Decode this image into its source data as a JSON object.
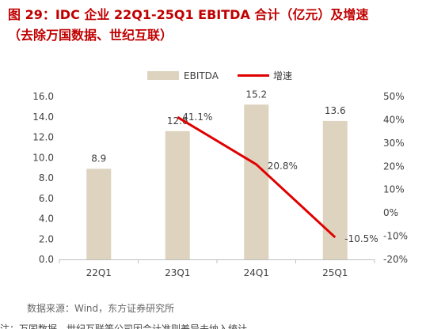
{
  "title_line1": "图 29：IDC 企业 22Q1-25Q1 EBITDA 合计（亿元）及增速",
  "title_line2": "（去除万国数据、世纪互联）",
  "source": "数据来源：Wind，东方证券研究所",
  "cut_text": "注：万国数据、世纪互联等公司因会计准则差异未纳入统计",
  "colors": {
    "title": "#c00000",
    "bar": "#ddd3bf",
    "line": "#e00000",
    "axis": "#bfbfbf",
    "text": "#404040"
  },
  "chart_data": {
    "type": "bar",
    "categories": [
      "22Q1",
      "23Q1",
      "24Q1",
      "25Q1"
    ],
    "series": [
      {
        "name": "EBITDA",
        "type": "bar",
        "axis": "left",
        "values": [
          8.9,
          12.6,
          15.2,
          13.6
        ],
        "labels": [
          "8.9",
          "12.6",
          "15.2",
          "13.6"
        ]
      },
      {
        "name": "增速",
        "type": "line",
        "axis": "right",
        "values": [
          null,
          41.1,
          20.8,
          -10.5
        ],
        "labels": [
          "",
          "41.1%",
          "20.8%",
          "-10.5%"
        ]
      }
    ],
    "y_left": {
      "min": 0,
      "max": 16,
      "ticks": [
        0,
        2,
        4,
        6,
        8,
        10,
        12,
        14,
        16
      ],
      "tick_labels": [
        "0.0",
        "2.0",
        "4.0",
        "6.0",
        "8.0",
        "10.0",
        "12.0",
        "14.0",
        "16.0"
      ]
    },
    "y_right": {
      "min": -20,
      "max": 50,
      "ticks": [
        -20,
        -10,
        0,
        10,
        20,
        30,
        40,
        50
      ],
      "tick_labels": [
        "-20%",
        "-10%",
        "0%",
        "10%",
        "20%",
        "30%",
        "40%",
        "50%"
      ]
    },
    "grid": false,
    "legend": "top-center"
  }
}
